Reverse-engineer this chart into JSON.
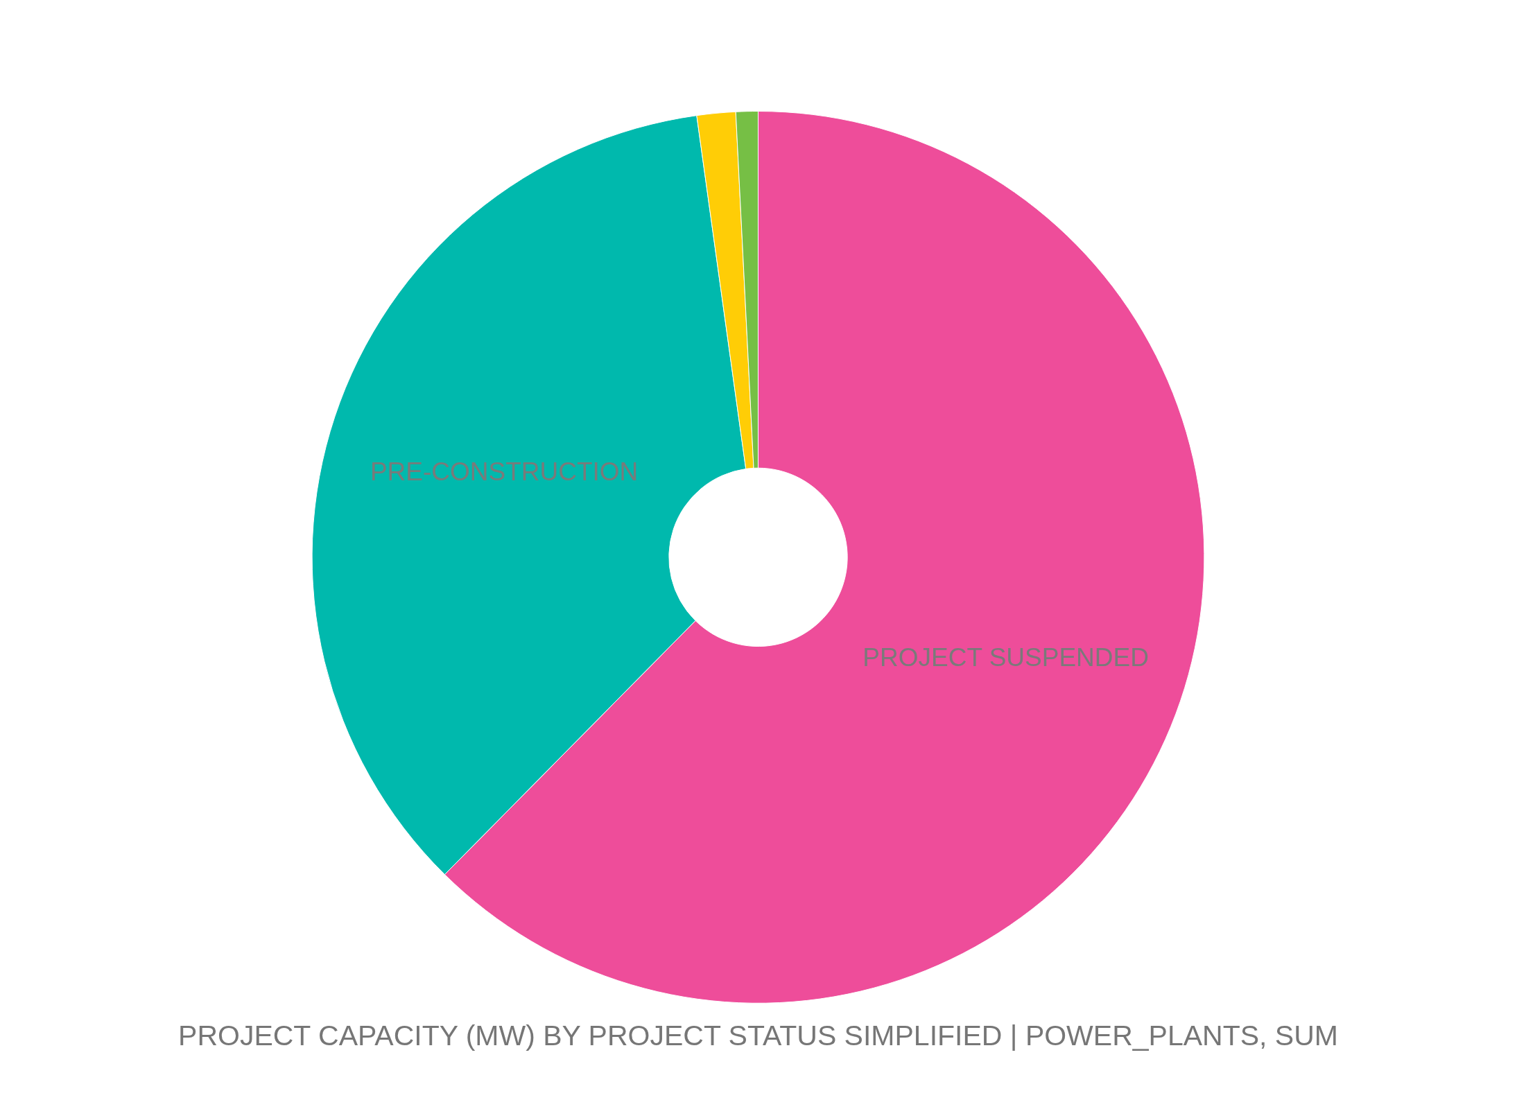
{
  "chart_data": {
    "type": "donut",
    "title": "PROJECT CAPACITY (MW) BY PROJECT STATUS SIMPLIFIED | POWER_PLANTS, SUM",
    "categories": [
      "PROJECT SUSPENDED",
      "PRE-CONSTRUCTION",
      null,
      null
    ],
    "values": [
      62.4,
      35.4,
      1.4,
      0.8
    ],
    "colors": [
      "#ee4d9a",
      "#00b9ad",
      "#ffcd06",
      "#76bf45"
    ]
  }
}
